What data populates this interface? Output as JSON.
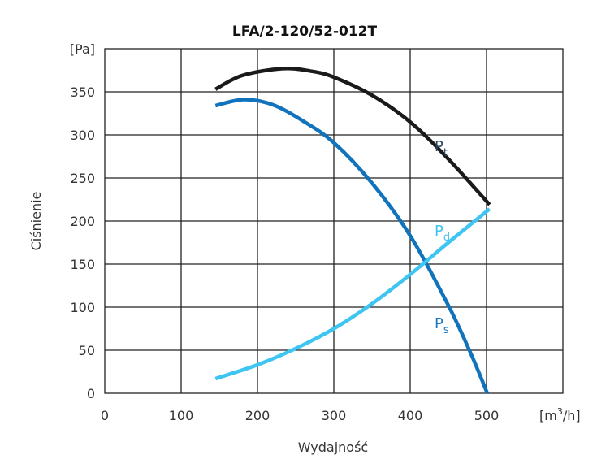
{
  "chart_data": {
    "type": "line",
    "title": "LFA/2-120/52-012T",
    "xlabel": "Wydajność",
    "ylabel": "Ciśnienie",
    "x_unit": {
      "base": "[m",
      "sup": "3",
      "tail": "/h]"
    },
    "y_unit": "[Pa]",
    "xlim": [
      0,
      600
    ],
    "ylim": [
      0,
      400
    ],
    "xticks": [
      0,
      100,
      200,
      300,
      400,
      500
    ],
    "yticks": [
      0,
      50,
      100,
      150,
      200,
      250,
      300,
      350
    ],
    "grid": true,
    "series": [
      {
        "name": "P",
        "sub": "t",
        "color": "#1a1a1a",
        "label_color": "#2b4560",
        "x": [
          145,
          180,
          233,
          270,
          300,
          350,
          400,
          450,
          504
        ],
        "y": [
          353,
          369,
          377,
          374,
          367,
          346,
          315,
          272,
          219
        ]
      },
      {
        "name": "P",
        "sub": "s",
        "color": "#1273bd",
        "label_color": "#1a78c2",
        "x": [
          145,
          182,
          220,
          260,
          300,
          350,
          400,
          450,
          480,
          501
        ],
        "y": [
          334,
          341,
          335,
          316,
          291,
          244,
          183,
          102,
          45,
          0
        ]
      },
      {
        "name": "P",
        "sub": "d",
        "color": "#3ec5f2",
        "label_color": "#3fc3f0",
        "x": [
          145,
          200,
          250,
          300,
          350,
          400,
          450,
          504
        ],
        "y": [
          17,
          33,
          52,
          75,
          104,
          138,
          175,
          214
        ]
      }
    ]
  }
}
